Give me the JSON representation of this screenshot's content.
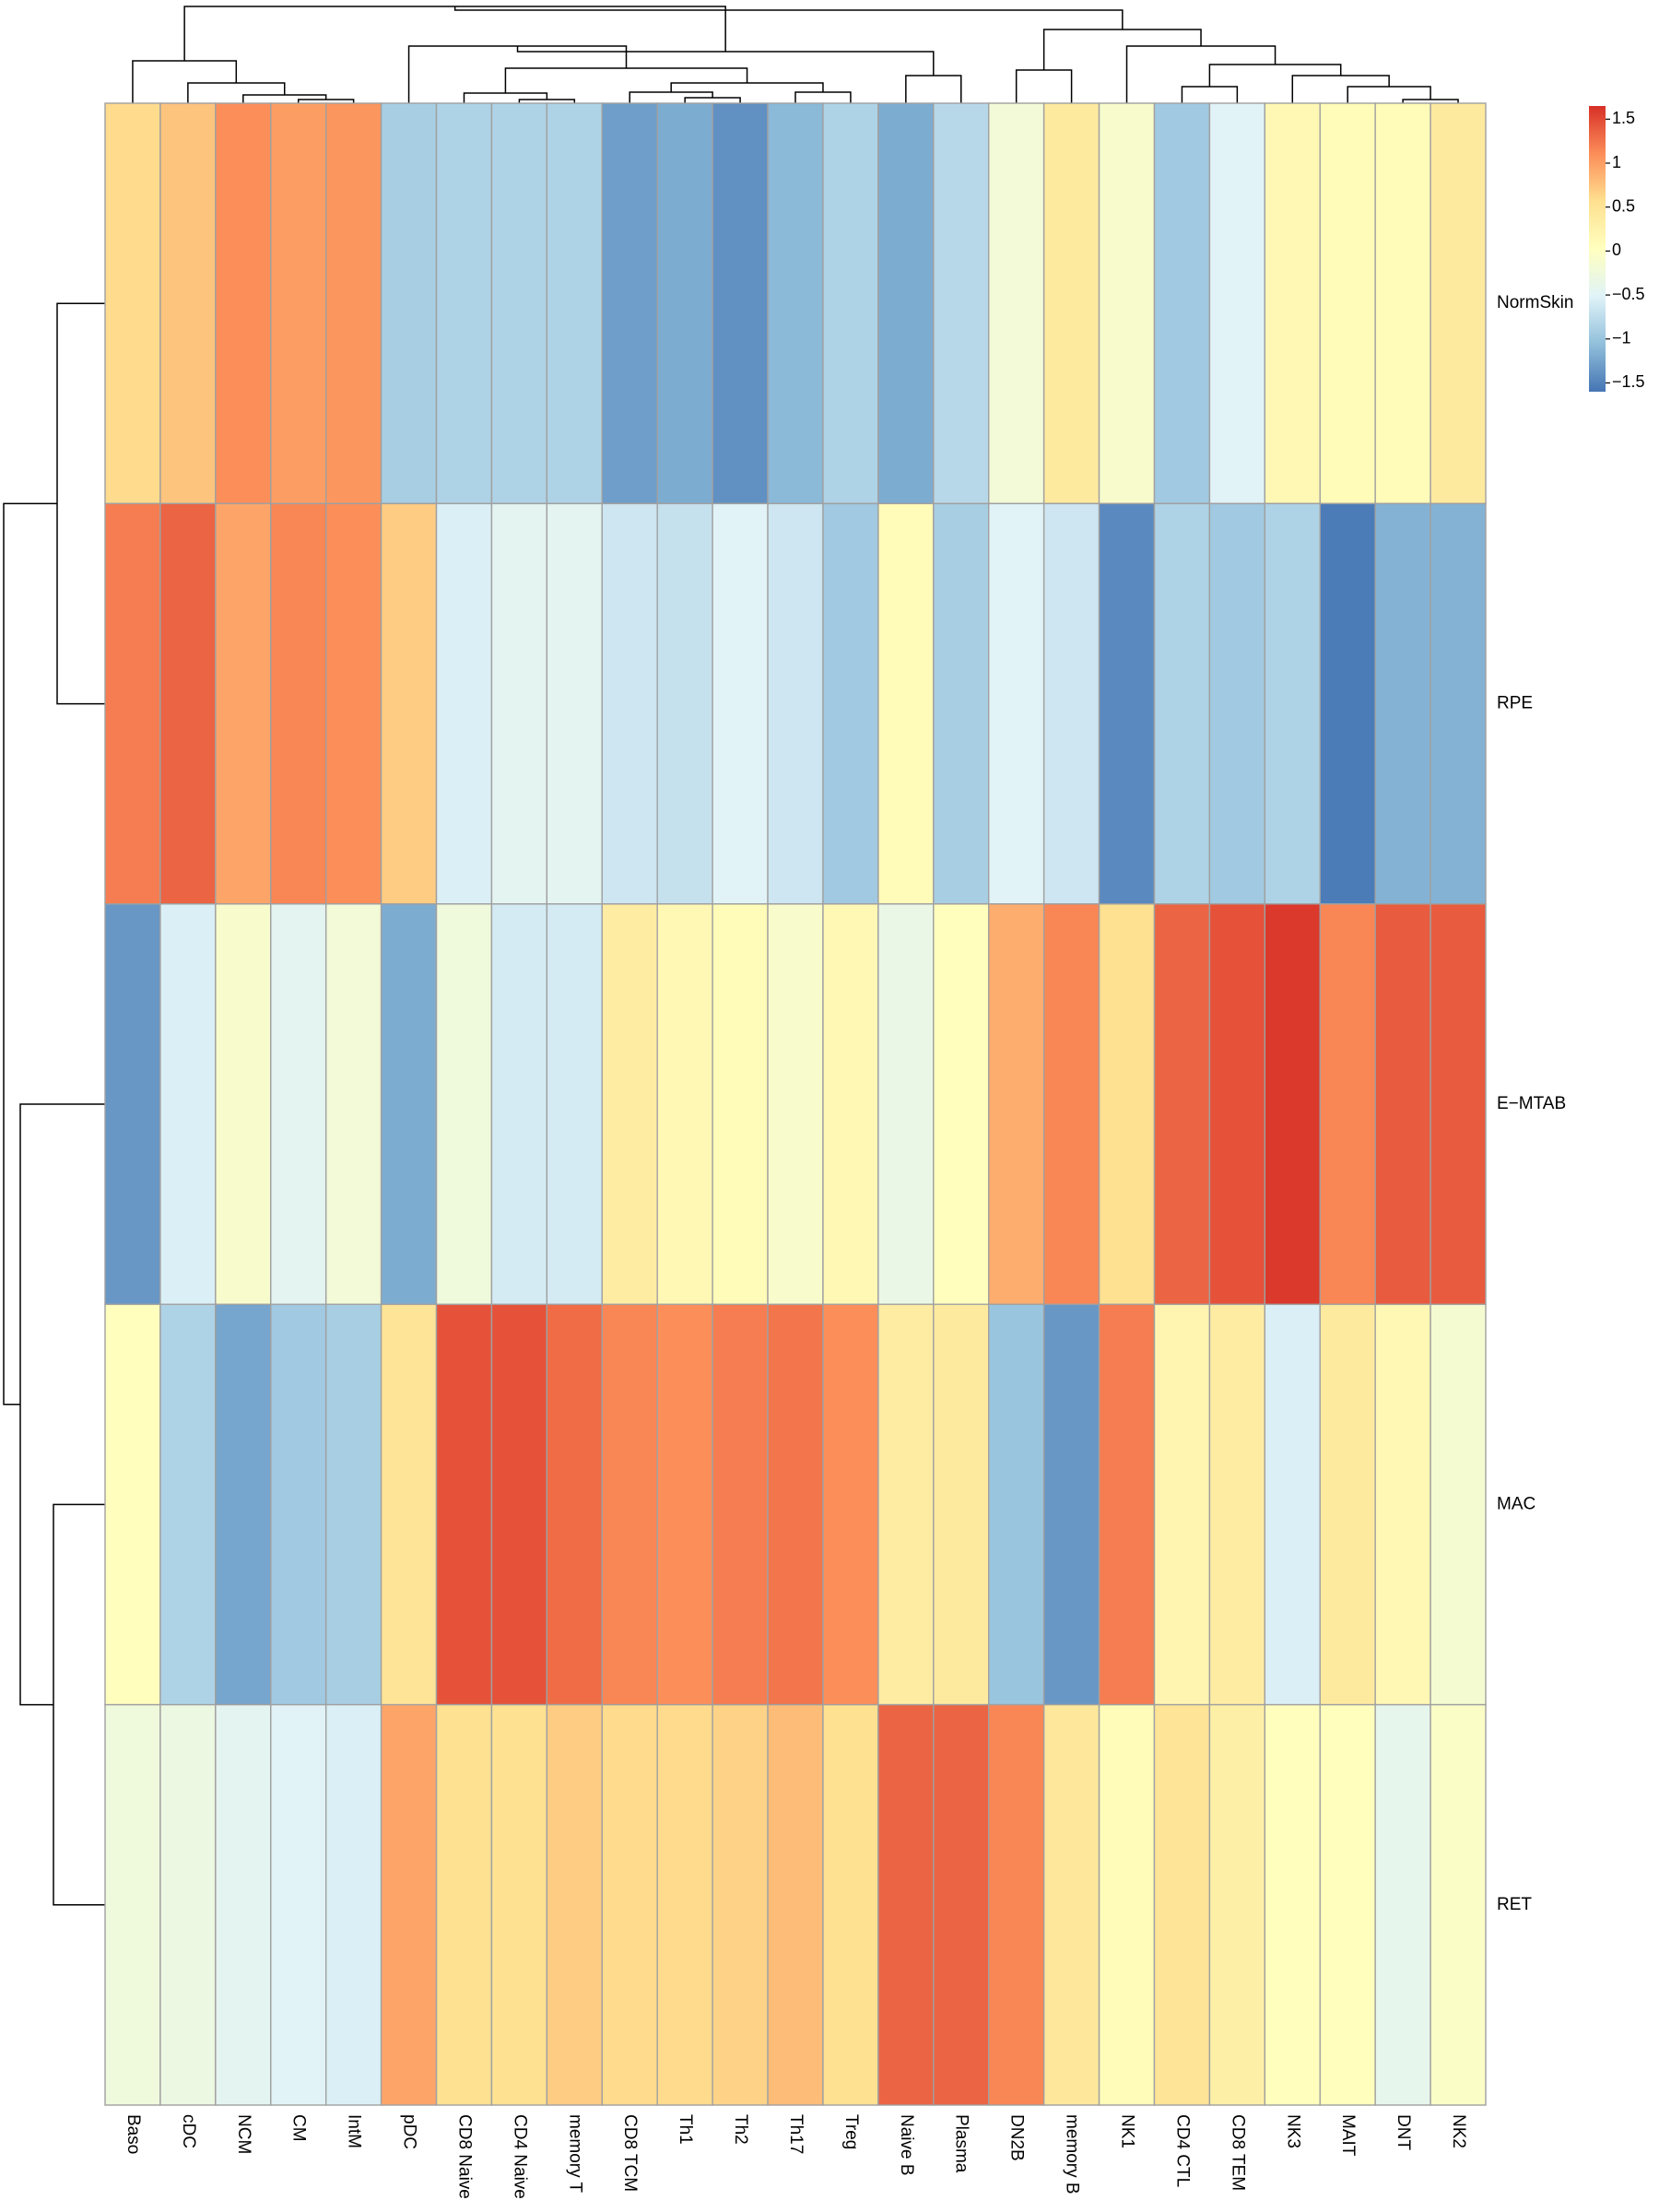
{
  "chart_data": {
    "type": "heatmap",
    "title": "",
    "columns": [
      "Baso",
      "cDC",
      "NCM",
      "CM",
      "IntM",
      "pDC",
      "CD8 Naive",
      "CD4 Naive",
      "memory T",
      "CD8 TCM",
      "Th1",
      "Th2",
      "Th17",
      "Treg",
      "Naive B",
      "Plasma",
      "DN2B",
      "memory B",
      "NK1",
      "CD4 CTL",
      "CD8 TEM",
      "NK3",
      "MAIT",
      "DNT",
      "NK2"
    ],
    "rows": [
      "NormSkin",
      "RPE",
      "E−MTAB",
      "MAC",
      "RET"
    ],
    "values": [
      [
        0.6,
        0.75,
        1.1,
        1.0,
        1.05,
        -0.9,
        -0.85,
        -0.85,
        -0.85,
        -1.3,
        -1.2,
        -1.4,
        -1.1,
        -0.85,
        -1.2,
        -0.8,
        -0.2,
        0.4,
        -0.1,
        -0.95,
        -0.5,
        0.15,
        0.1,
        0.1,
        0.4
      ],
      [
        1.2,
        1.35,
        0.95,
        1.15,
        1.1,
        0.7,
        -0.55,
        -0.45,
        -0.45,
        -0.65,
        -0.7,
        -0.5,
        -0.65,
        -0.95,
        0.1,
        -0.9,
        -0.5,
        -0.65,
        -1.45,
        -0.85,
        -0.95,
        -0.85,
        -1.55,
        -1.15,
        -1.15
      ],
      [
        -1.35,
        -0.55,
        -0.1,
        -0.45,
        -0.2,
        -1.2,
        -0.25,
        -0.6,
        -0.6,
        0.35,
        0.15,
        0.1,
        -0.1,
        0.15,
        -0.35,
        0.05,
        0.9,
        1.15,
        0.55,
        1.35,
        1.45,
        1.6,
        1.15,
        1.4,
        1.4
      ],
      [
        0.05,
        -0.85,
        -1.25,
        -0.95,
        -0.9,
        0.5,
        1.45,
        1.45,
        1.3,
        1.15,
        1.1,
        1.2,
        1.25,
        1.1,
        0.35,
        0.4,
        -1.0,
        -1.35,
        1.2,
        0.2,
        0.35,
        -0.55,
        0.4,
        0.15,
        -0.15
      ],
      [
        -0.25,
        -0.3,
        -0.45,
        -0.5,
        -0.55,
        0.95,
        0.55,
        0.55,
        0.7,
        0.6,
        0.6,
        0.65,
        0.8,
        0.55,
        1.35,
        1.35,
        1.15,
        0.45,
        0.1,
        0.5,
        0.3,
        0.05,
        0.05,
        -0.4,
        -0.05
      ]
    ],
    "legend": {
      "min": -1.6,
      "max": 1.65,
      "ticks": [
        "1.5",
        "1",
        "0.5",
        "0",
        "−0.5",
        "−1",
        "−1.5"
      ],
      "tick_values": [
        1.5,
        1.0,
        0.5,
        0.0,
        -0.5,
        -1.0,
        -1.5
      ]
    },
    "colormap": [
      "#4575b4",
      "#91bfdb",
      "#e0f3f8",
      "#ffffbf",
      "#fee090",
      "#fc8d59",
      "#d73027"
    ],
    "cell_border_color": "#a0a0a0",
    "column_clustering": true,
    "row_clustering": true
  }
}
